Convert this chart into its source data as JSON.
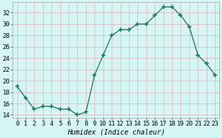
{
  "x": [
    0,
    1,
    2,
    3,
    4,
    5,
    6,
    7,
    8,
    9,
    10,
    11,
    12,
    13,
    14,
    15,
    16,
    17,
    18,
    19,
    20,
    21,
    22,
    23
  ],
  "y": [
    19.0,
    17.0,
    15.0,
    15.5,
    15.5,
    15.0,
    15.0,
    14.0,
    14.5,
    21.0,
    24.5,
    28.0,
    29.0,
    29.0,
    30.0,
    30.0,
    31.5,
    33.0,
    33.0,
    31.5,
    29.5,
    24.5,
    23.0,
    21.0
  ],
  "line_color": "#1a7a5e",
  "marker": "+",
  "marker_size": 4,
  "marker_lw": 1.2,
  "bg_color": "#d6f5f5",
  "grid_color": "#deb8b8",
  "xlabel": "Humidex (Indice chaleur)",
  "xlabel_fontsize": 7,
  "ytick_values": [
    14,
    16,
    18,
    20,
    22,
    24,
    26,
    28,
    30,
    32
  ],
  "ytick_labels": [
    "14",
    "16",
    "18",
    "20",
    "22",
    "24",
    "26",
    "28",
    "30",
    "32"
  ],
  "ylim": [
    13.5,
    33.8
  ],
  "xlim": [
    -0.5,
    23.5
  ],
  "tick_fontsize": 6.5,
  "linewidth": 1.0
}
